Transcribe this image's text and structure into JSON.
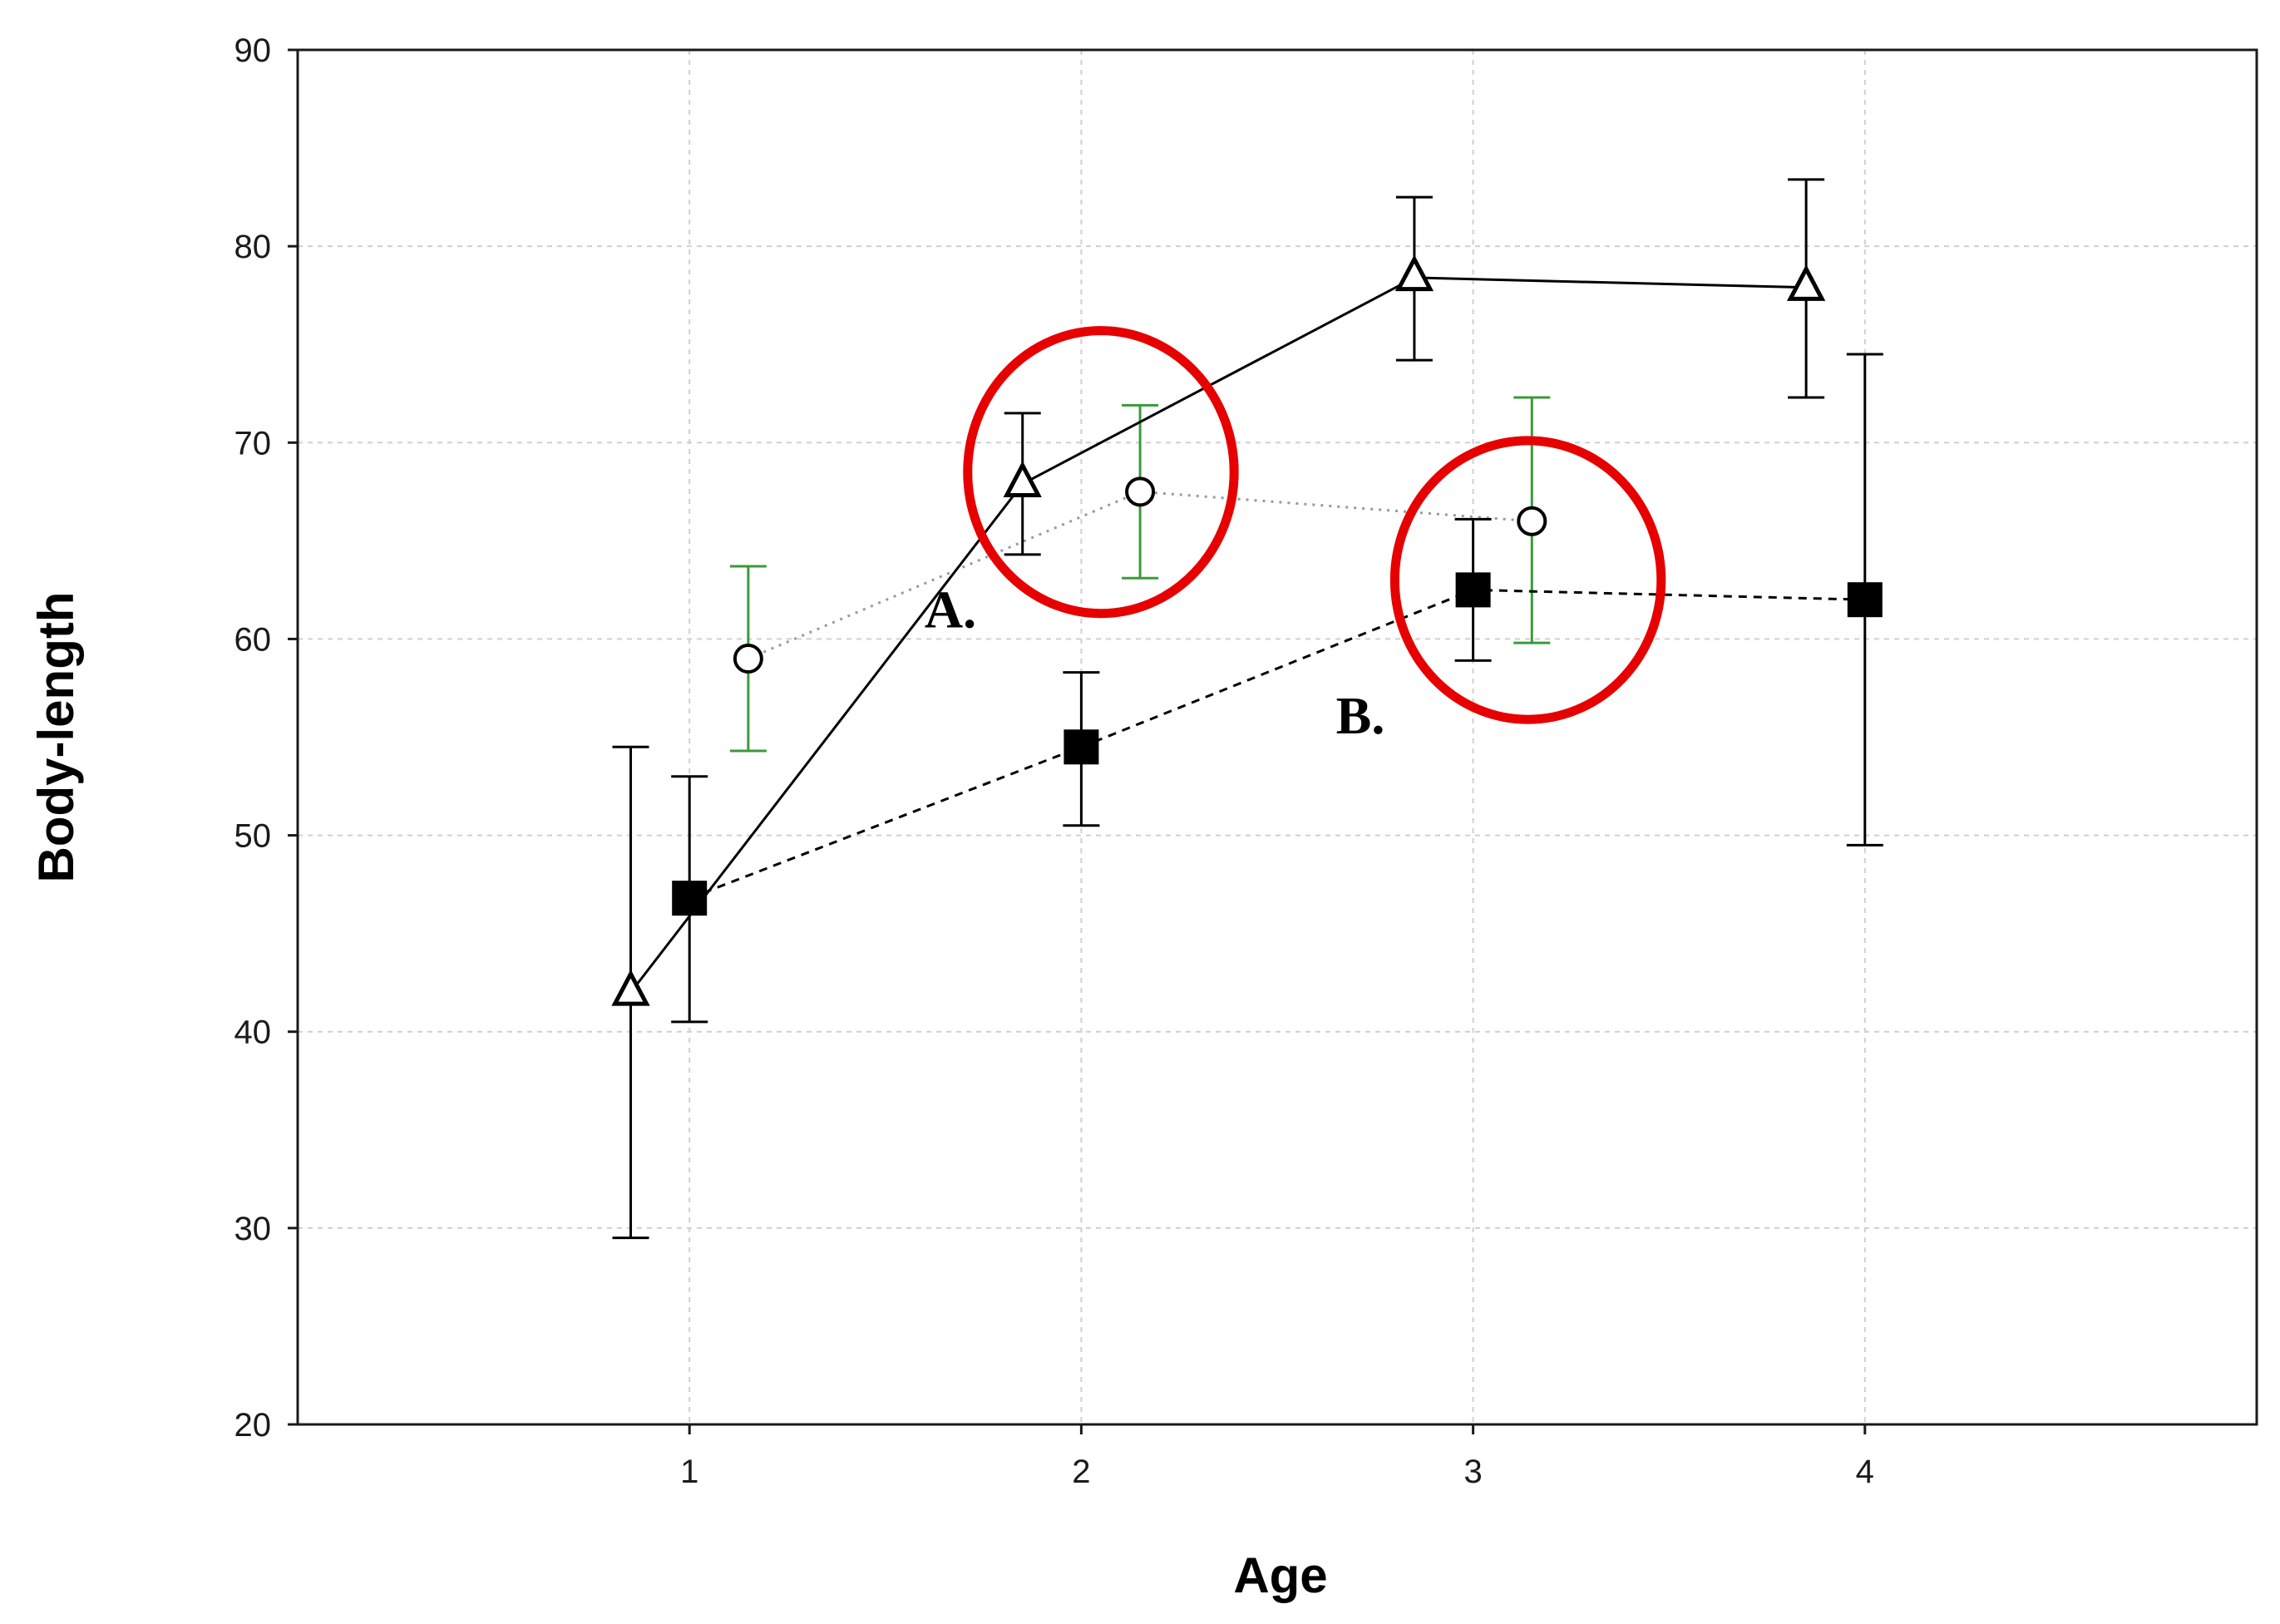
{
  "chart_data": {
    "type": "line",
    "xlabel": "Age",
    "ylabel": "Body-length",
    "xlim": [
      0,
      5
    ],
    "ylim": [
      20,
      90
    ],
    "x_ticks": [
      "1",
      "2",
      "3",
      "4"
    ],
    "y_ticks": [
      "20",
      "30",
      "40",
      "50",
      "60",
      "70",
      "80",
      "90"
    ],
    "grid": true,
    "series": [
      {
        "marker": "triangle-open",
        "line": "solid",
        "color": "#000000",
        "errorbar_color": "#000000",
        "points": [
          {
            "x": 0.85,
            "y": 42,
            "low": 29.5,
            "high": 54.5
          },
          {
            "x": 1.85,
            "y": 67.9,
            "low": 64.3,
            "high": 71.5
          },
          {
            "x": 2.85,
            "y": 78.4,
            "low": 74.2,
            "high": 82.5
          },
          {
            "x": 3.85,
            "y": 77.9,
            "low": 72.3,
            "high": 83.4
          }
        ]
      },
      {
        "marker": "square-filled",
        "line": "dashed",
        "color": "#000000",
        "errorbar_color": "#000000",
        "points": [
          {
            "x": 1.0,
            "y": 46.8,
            "low": 40.5,
            "high": 53.0
          },
          {
            "x": 2.0,
            "y": 54.5,
            "low": 50.5,
            "high": 58.3
          },
          {
            "x": 3.0,
            "y": 62.5,
            "low": 58.9,
            "high": 66.1
          },
          {
            "x": 4.0,
            "y": 62.0,
            "low": 49.5,
            "high": 74.5
          }
        ]
      },
      {
        "marker": "circle-open",
        "line": "dotted",
        "color": "#9a9a9a",
        "errorbar_color": "#3a9a3a",
        "points": [
          {
            "x": 1.15,
            "y": 59.0,
            "low": 54.3,
            "high": 63.7
          },
          {
            "x": 2.15,
            "y": 67.5,
            "low": 63.1,
            "high": 71.9
          },
          {
            "x": 3.15,
            "y": 66.0,
            "low": 59.8,
            "high": 72.3
          }
        ]
      }
    ],
    "annotations": [
      {
        "label": "A.",
        "x": 1.6,
        "y": 60.6,
        "circle": {
          "cx": 2.05,
          "cy": 68.5,
          "rx": 0.34,
          "ry": 7.2
        }
      },
      {
        "label": "B.",
        "x": 2.65,
        "y": 55.2,
        "circle": {
          "cx": 3.14,
          "cy": 63.0,
          "rx": 0.34,
          "ry": 7.1
        }
      }
    ],
    "highlight_color": "#e60000"
  }
}
